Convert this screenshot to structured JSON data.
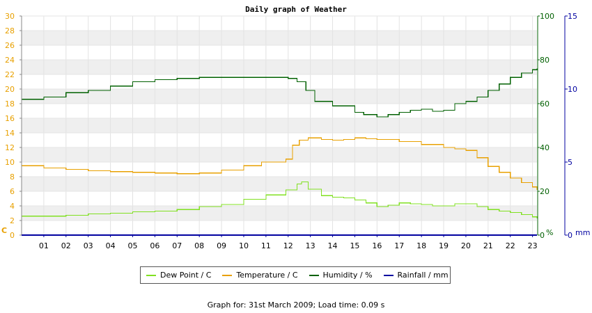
{
  "chart_data": {
    "type": "line",
    "title": "Daily graph of Weather",
    "x_ticks": [
      "01",
      "02",
      "03",
      "04",
      "05",
      "06",
      "07",
      "08",
      "09",
      "10",
      "11",
      "12",
      "13",
      "14",
      "15",
      "16",
      "17",
      "18",
      "19",
      "20",
      "21",
      "22",
      "23"
    ],
    "xlim": [
      0,
      23.2
    ],
    "axes": {
      "left": {
        "unit_label": "C",
        "range": [
          0,
          30
        ],
        "ticks": [
          0,
          2,
          4,
          6,
          8,
          10,
          12,
          14,
          16,
          18,
          20,
          22,
          24,
          26,
          28,
          30
        ],
        "color": "#e8a000"
      },
      "right1": {
        "unit_label": "%",
        "range": [
          0,
          100
        ],
        "ticks": [
          0,
          20,
          40,
          60,
          80,
          100
        ],
        "color": "#006000"
      },
      "right2": {
        "unit_label": "mm",
        "range": [
          0,
          15
        ],
        "ticks": [
          0,
          5,
          10,
          15
        ],
        "color": "#0000a0"
      }
    },
    "grid": "alternating horizontal bands",
    "legend_position": "bottom",
    "series": [
      {
        "name": "Dew Point / C",
        "axis": "left",
        "color": "#80e020",
        "x": [
          0,
          1,
          2,
          3,
          4,
          5,
          6,
          7,
          8,
          9,
          10,
          11,
          11.9,
          12.4,
          12.6,
          12.9,
          13.5,
          14,
          14.5,
          15,
          15.5,
          16,
          16.5,
          17,
          17.5,
          18,
          18.5,
          19,
          19.5,
          20,
          20.5,
          21,
          21.5,
          22,
          22.5,
          23,
          23.2
        ],
        "y": [
          2.6,
          2.6,
          2.7,
          2.9,
          3.0,
          3.2,
          3.3,
          3.5,
          3.9,
          4.2,
          4.9,
          5.5,
          6.2,
          7.0,
          7.3,
          6.3,
          5.4,
          5.2,
          5.1,
          4.8,
          4.4,
          3.9,
          4.1,
          4.4,
          4.3,
          4.2,
          4.0,
          4.0,
          4.3,
          4.3,
          3.9,
          3.5,
          3.3,
          3.1,
          2.8,
          2.5,
          2.3
        ]
      },
      {
        "name": "Temperature / C",
        "axis": "left",
        "color": "#e8a000",
        "x": [
          0,
          1,
          2,
          3,
          4,
          5,
          6,
          7,
          8,
          9,
          10,
          10.8,
          11.9,
          12.2,
          12.5,
          12.9,
          13.5,
          14,
          14.5,
          15,
          15.5,
          16,
          17,
          18,
          19,
          19.5,
          20,
          20.5,
          21,
          21.5,
          22,
          22.5,
          23,
          23.2
        ],
        "y": [
          9.5,
          9.2,
          9.0,
          8.8,
          8.7,
          8.6,
          8.5,
          8.4,
          8.5,
          8.9,
          9.5,
          10.0,
          10.4,
          12.3,
          13.0,
          13.3,
          13.1,
          13.0,
          13.1,
          13.3,
          13.2,
          13.1,
          12.8,
          12.4,
          12.0,
          11.8,
          11.6,
          10.6,
          9.4,
          8.6,
          7.8,
          7.2,
          6.6,
          6.2
        ]
      },
      {
        "name": "Humidity / %",
        "axis": "right1",
        "color": "#006000",
        "x": [
          0,
          1,
          2,
          3,
          4,
          5,
          6,
          7,
          8,
          9,
          10,
          11,
          12,
          12.4,
          12.8,
          13.2,
          14,
          15,
          15.4,
          16,
          16.5,
          17,
          17.5,
          18,
          18.5,
          19,
          19.5,
          20,
          20.5,
          21,
          21.5,
          22,
          22.5,
          23,
          23.2
        ],
        "y": [
          62,
          63,
          65,
          66,
          68,
          70,
          71,
          71.5,
          72,
          72,
          72,
          72,
          71.5,
          70,
          66,
          61,
          59,
          56,
          55,
          54,
          55,
          56,
          57,
          57.5,
          56.5,
          57,
          60,
          61,
          63,
          66,
          69,
          72,
          74,
          75.5,
          76
        ]
      },
      {
        "name": "Rainfall / mm",
        "axis": "right2",
        "color": "#0000a0",
        "x": [
          0,
          23.2
        ],
        "y": [
          0,
          0
        ]
      }
    ]
  },
  "footer": {
    "text": "Graph for: 31st March 2009; Load time: 0.09 s"
  }
}
